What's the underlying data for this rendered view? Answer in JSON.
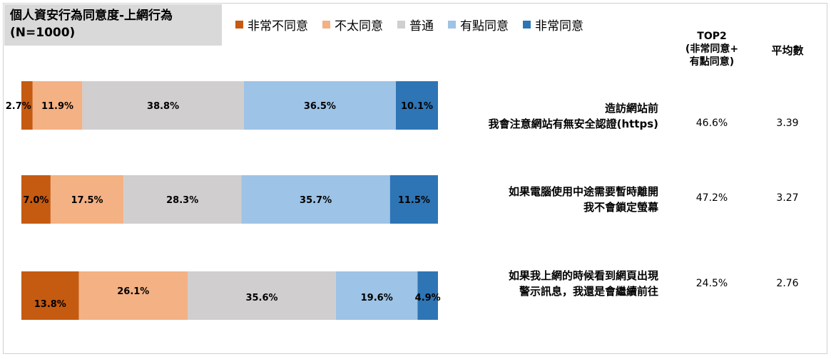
{
  "title": {
    "line1": "個人資安行為同意度-上網行為",
    "line2": "(N=1000)"
  },
  "legend": [
    {
      "label": "非常不同意",
      "color": "#c55a11"
    },
    {
      "label": "不太同意",
      "color": "#f4b183"
    },
    {
      "label": "普通",
      "color": "#d0cece"
    },
    {
      "label": "有點同意",
      "color": "#9dc3e6"
    },
    {
      "label": "非常同意",
      "color": "#2e75b6"
    }
  ],
  "headers": {
    "top2_line1": "TOP2",
    "top2_line2": "(非常同意+",
    "top2_line3": "有點同意)",
    "avg": "平均數"
  },
  "rows": [
    {
      "question_line1": "造訪網站前",
      "question_line2": "我會注意網站有無安全認證(https)",
      "top2": "46.6%",
      "avg": "3.39"
    },
    {
      "question_line1": "如果電腦使用中途需要暫時離開",
      "question_line2": "我不會鎖定螢幕",
      "top2": "47.2%",
      "avg": "3.27"
    },
    {
      "question_line1": "如果我上網的時候看到網頁出現",
      "question_line2": "警示訊息，我還是會繼續前往",
      "top2": "24.5%",
      "avg": "2.76"
    }
  ],
  "chart_data": {
    "type": "bar",
    "stacked": true,
    "orientation": "horizontal",
    "categories": [
      "造訪網站前 我會注意網站有無安全認證(https)",
      "如果電腦使用中途需要暫時離開 我不會鎖定螢幕",
      "如果我上網的時候看到網頁出現 警示訊息，我還是會繼續前往"
    ],
    "series": [
      {
        "name": "非常不同意",
        "values": [
          2.7,
          7.0,
          13.8
        ],
        "labels": [
          "2.7%",
          "7.0%",
          "13.8%"
        ],
        "color": "#c55a11"
      },
      {
        "name": "不太同意",
        "values": [
          11.9,
          17.5,
          26.1
        ],
        "labels": [
          "11.9%",
          "17.5%",
          "26.1%"
        ],
        "color": "#f4b183"
      },
      {
        "name": "普通",
        "values": [
          38.8,
          28.3,
          35.6
        ],
        "labels": [
          "38.8%",
          "28.3%",
          "35.6%"
        ],
        "color": "#d0cece"
      },
      {
        "name": "有點同意",
        "values": [
          36.5,
          35.7,
          19.6
        ],
        "labels": [
          "36.5%",
          "35.7%",
          "19.6%"
        ],
        "color": "#9dc3e6"
      },
      {
        "name": "非常同意",
        "values": [
          10.1,
          11.5,
          4.9
        ],
        "labels": [
          "10.1%",
          "11.5%",
          "4.9%"
        ],
        "color": "#2e75b6"
      }
    ],
    "xlim": [
      0,
      100
    ],
    "legend_position": "top",
    "grid": false
  }
}
